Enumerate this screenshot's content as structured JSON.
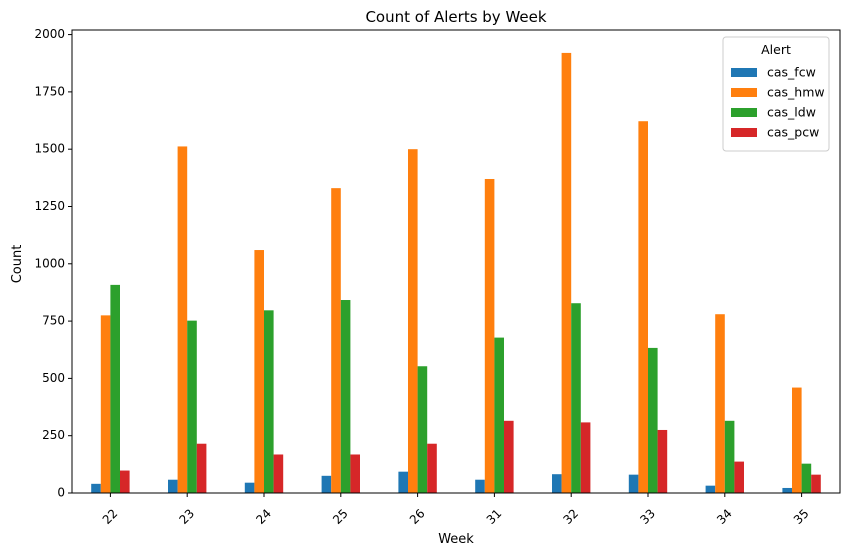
{
  "chart_data": {
    "type": "bar",
    "title": "Count of Alerts by Week",
    "xlabel": "Week",
    "ylabel": "Count",
    "categories": [
      "22",
      "23",
      "24",
      "25",
      "26",
      "31",
      "32",
      "33",
      "34",
      "35"
    ],
    "ylim": [
      0,
      2020
    ],
    "yticks": [
      0,
      250,
      500,
      750,
      1000,
      1250,
      1500,
      1750,
      2000
    ],
    "xtick_rotation": 45,
    "grid": false,
    "legend": {
      "title": "Alert",
      "placement": "top-right"
    },
    "series": [
      {
        "name": "cas_fcw",
        "color": "#1f77b4",
        "values": [
          40,
          58,
          45,
          75,
          93,
          58,
          82,
          80,
          32,
          22
        ]
      },
      {
        "name": "cas_hmw",
        "color": "#ff7f0e",
        "values": [
          775,
          1512,
          1060,
          1330,
          1500,
          1370,
          1920,
          1622,
          780,
          460
        ]
      },
      {
        "name": "cas_ldw",
        "color": "#2ca02c",
        "values": [
          908,
          752,
          797,
          842,
          553,
          678,
          828,
          633,
          315,
          128
        ]
      },
      {
        "name": "cas_pcw",
        "color": "#d62728",
        "values": [
          98,
          215,
          168,
          168,
          215,
          315,
          308,
          275,
          137,
          80
        ]
      }
    ]
  }
}
